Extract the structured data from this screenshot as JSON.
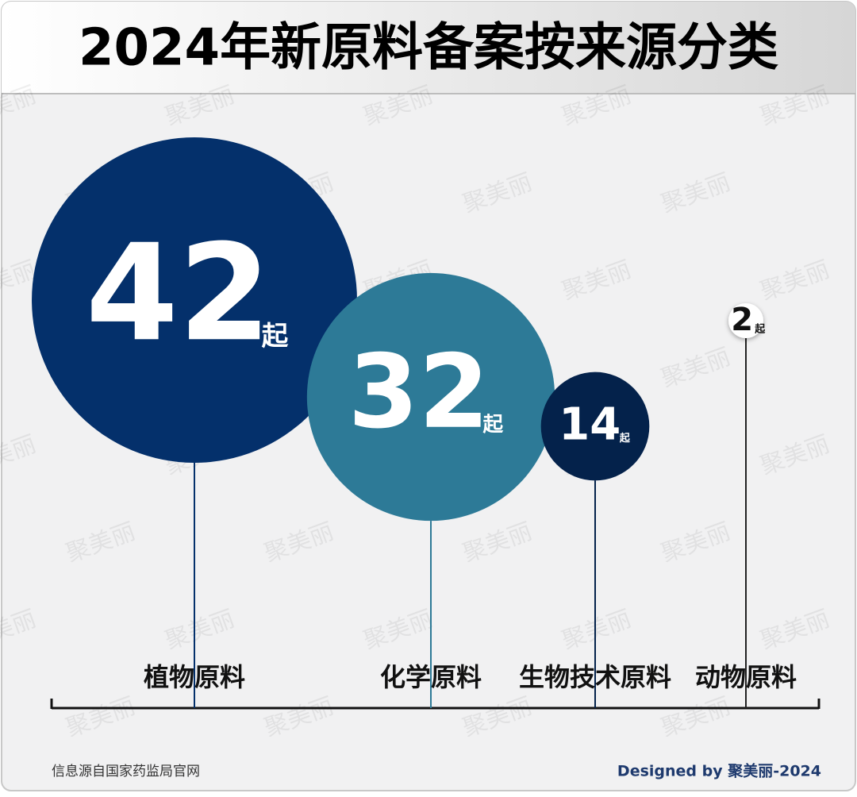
{
  "chart_data": {
    "type": "bubble",
    "title": "2024年新原料备案按来源分类",
    "categories": [
      "植物原料",
      "化学原料",
      "生物技术原料",
      "动物原料"
    ],
    "values": [
      42,
      32,
      14,
      2
    ],
    "unit": "起",
    "colors": [
      "#04306b",
      "#2d7a97",
      "#04224b",
      "#ffffff"
    ],
    "source": "信息源自国家药监局官网",
    "credit": "Designed by 聚美丽-2024",
    "watermark": "聚美丽"
  }
}
